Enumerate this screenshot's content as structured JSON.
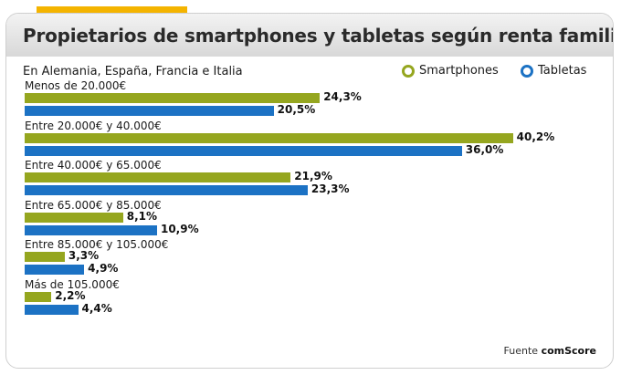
{
  "title": "Propietarios de smartphones y tabletas según renta familiar",
  "subtitle": "En Alemania, España, Francia e Italia",
  "source": {
    "label": "Fuente",
    "name": "comScore"
  },
  "colors": {
    "smartphones": "#95a61f",
    "tabletas": "#1c72c4",
    "accent": "#f4b400"
  },
  "chart_data": {
    "type": "bar",
    "orientation": "horizontal",
    "categories": [
      "Menos de 20.000€",
      "Entre 20.000€ y 40.000€",
      "Entre 40.000€ y 65.000€",
      "Entre 65.000€ y 85.000€",
      "Entre 85.000€ y 105.000€",
      "Más de 105.000€"
    ],
    "series": [
      {
        "name": "Smartphones",
        "values": [
          24.3,
          40.2,
          21.9,
          8.1,
          3.3,
          2.2
        ],
        "labels": [
          "24,3%",
          "40,2%",
          "21,9%",
          "8,1%",
          "3,3%",
          "2,2%"
        ]
      },
      {
        "name": "Tabletas",
        "values": [
          20.5,
          36.0,
          23.3,
          10.9,
          4.9,
          4.4
        ],
        "labels": [
          "20,5%",
          "36,0%",
          "23,3%",
          "10,9%",
          "4,9%",
          "4,4%"
        ]
      }
    ],
    "legend": "top-right",
    "grid": false
  }
}
